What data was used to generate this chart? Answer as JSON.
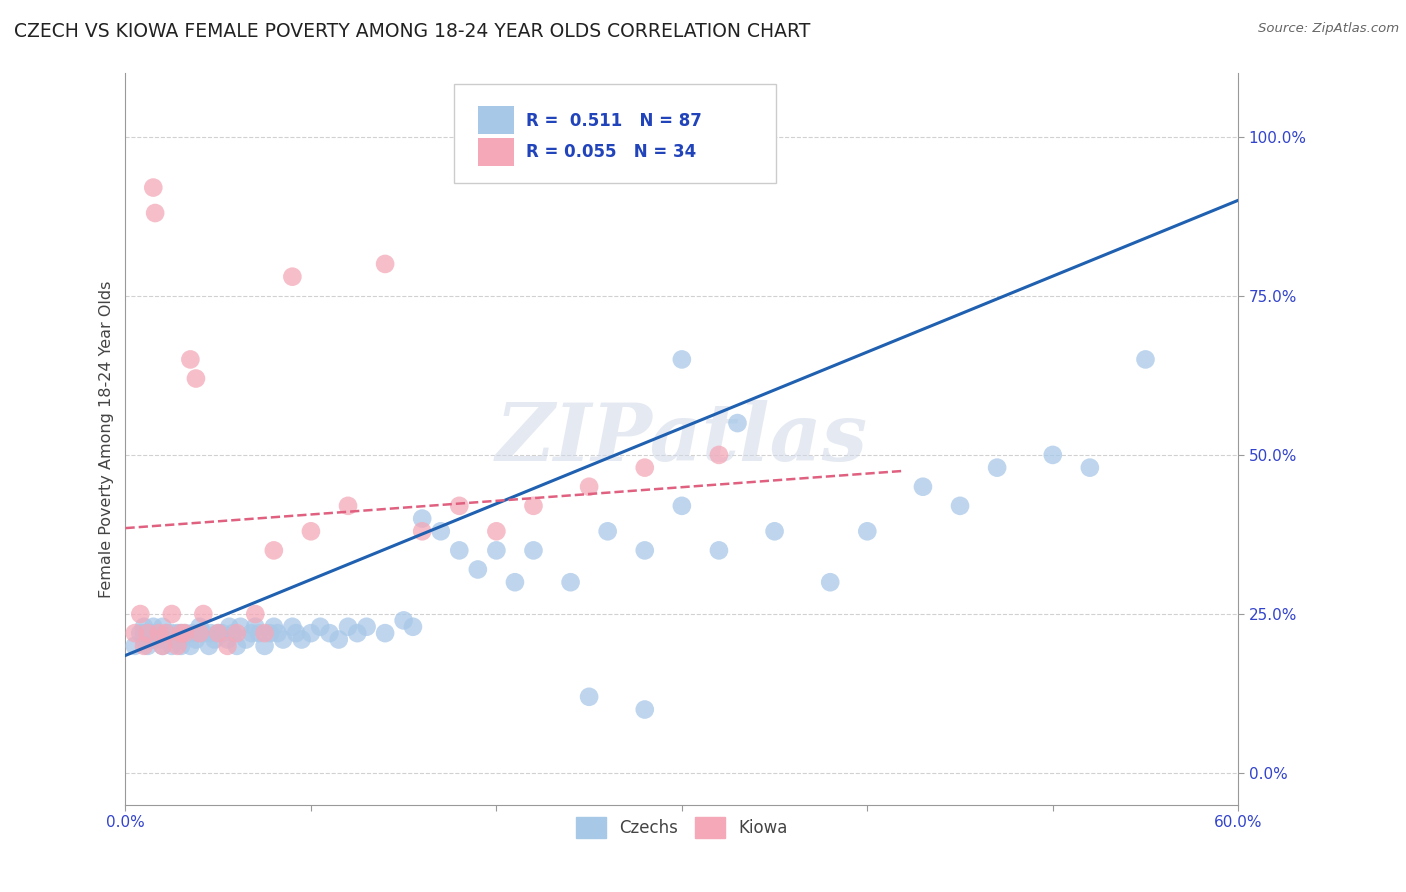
{
  "title": "CZECH VS KIOWA FEMALE POVERTY AMONG 18-24 YEAR OLDS CORRELATION CHART",
  "source": "Source: ZipAtlas.com",
  "ylabel": "Female Poverty Among 18-24 Year Olds",
  "xlim": [
    0.0,
    0.6
  ],
  "ylim": [
    -0.05,
    1.1
  ],
  "xtick_show": [
    "0.0%",
    "60.0%"
  ],
  "ytick_positions": [
    0.0,
    0.25,
    0.5,
    0.75,
    1.0
  ],
  "yticklabels": [
    "0.0%",
    "25.0%",
    "50.0%",
    "75.0%",
    "100.0%"
  ],
  "czech_color": "#a8c8e8",
  "kiowa_color": "#f4a8b8",
  "czech_line_color": "#2060b0",
  "kiowa_line_color": "#e06080",
  "R_czech": 0.511,
  "N_czech": 87,
  "R_kiowa": 0.055,
  "N_kiowa": 34,
  "watermark": "ZIPatlas",
  "background_color": "#ffffff",
  "grid_color": "#cccccc",
  "czech_line_x0": 0.0,
  "czech_line_y0": 0.185,
  "czech_line_x1": 0.6,
  "czech_line_y1": 0.9,
  "kiowa_line_x0": 0.0,
  "kiowa_line_y0": 0.385,
  "kiowa_line_x1": 0.42,
  "kiowa_line_y1": 0.475,
  "czech_x": [
    0.005,
    0.008,
    0.01,
    0.01,
    0.01,
    0.012,
    0.012,
    0.014,
    0.015,
    0.015,
    0.016,
    0.018,
    0.02,
    0.02,
    0.02,
    0.022,
    0.025,
    0.025,
    0.027,
    0.028,
    0.03,
    0.03,
    0.03,
    0.032,
    0.035,
    0.036,
    0.038,
    0.04,
    0.04,
    0.042,
    0.045,
    0.046,
    0.048,
    0.05,
    0.052,
    0.055,
    0.056,
    0.058,
    0.06,
    0.062,
    0.065,
    0.068,
    0.07,
    0.072,
    0.075,
    0.078,
    0.08,
    0.082,
    0.085,
    0.09,
    0.092,
    0.095,
    0.1,
    0.105,
    0.11,
    0.115,
    0.12,
    0.125,
    0.13,
    0.14,
    0.15,
    0.155,
    0.16,
    0.17,
    0.18,
    0.19,
    0.2,
    0.21,
    0.22,
    0.24,
    0.26,
    0.28,
    0.3,
    0.32,
    0.35,
    0.38,
    0.4,
    0.43,
    0.45,
    0.47,
    0.5,
    0.52,
    0.3,
    0.33,
    0.28,
    0.25,
    0.55
  ],
  "czech_y": [
    0.2,
    0.22,
    0.21,
    0.22,
    0.23,
    0.2,
    0.22,
    0.21,
    0.22,
    0.23,
    0.21,
    0.22,
    0.2,
    0.21,
    0.23,
    0.22,
    0.2,
    0.22,
    0.21,
    0.22,
    0.2,
    0.21,
    0.22,
    0.22,
    0.2,
    0.22,
    0.21,
    0.22,
    0.23,
    0.22,
    0.2,
    0.22,
    0.21,
    0.22,
    0.22,
    0.21,
    0.23,
    0.22,
    0.2,
    0.23,
    0.21,
    0.22,
    0.23,
    0.22,
    0.2,
    0.22,
    0.23,
    0.22,
    0.21,
    0.23,
    0.22,
    0.21,
    0.22,
    0.23,
    0.22,
    0.21,
    0.23,
    0.22,
    0.23,
    0.22,
    0.24,
    0.23,
    0.4,
    0.38,
    0.35,
    0.32,
    0.35,
    0.3,
    0.35,
    0.3,
    0.38,
    0.35,
    0.42,
    0.35,
    0.38,
    0.3,
    0.38,
    0.45,
    0.42,
    0.48,
    0.5,
    0.48,
    0.65,
    0.55,
    0.1,
    0.12,
    0.65
  ],
  "kiowa_x": [
    0.005,
    0.008,
    0.01,
    0.012,
    0.015,
    0.016,
    0.018,
    0.02,
    0.022,
    0.025,
    0.028,
    0.03,
    0.032,
    0.035,
    0.038,
    0.04,
    0.042,
    0.05,
    0.055,
    0.06,
    0.07,
    0.075,
    0.08,
    0.09,
    0.1,
    0.12,
    0.14,
    0.16,
    0.18,
    0.2,
    0.22,
    0.25,
    0.28,
    0.32
  ],
  "kiowa_y": [
    0.22,
    0.25,
    0.2,
    0.22,
    0.92,
    0.88,
    0.22,
    0.2,
    0.22,
    0.25,
    0.2,
    0.22,
    0.22,
    0.65,
    0.62,
    0.22,
    0.25,
    0.22,
    0.2,
    0.22,
    0.25,
    0.22,
    0.35,
    0.78,
    0.38,
    0.42,
    0.8,
    0.38,
    0.42,
    0.38,
    0.42,
    0.45,
    0.48,
    0.5
  ]
}
